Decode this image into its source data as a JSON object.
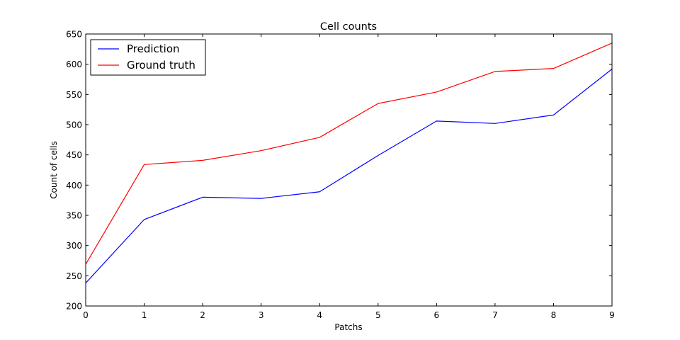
{
  "chart_data": {
    "type": "line",
    "title": "Cell counts",
    "xlabel": "Patchs",
    "ylabel": "Count of cells",
    "x": [
      0,
      1,
      2,
      3,
      4,
      5,
      6,
      7,
      8,
      9
    ],
    "xlim": [
      0,
      9
    ],
    "ylim": [
      200,
      650
    ],
    "xticks": [
      0,
      1,
      2,
      3,
      4,
      5,
      6,
      7,
      8,
      9
    ],
    "yticks": [
      200,
      250,
      300,
      350,
      400,
      450,
      500,
      550,
      600,
      650
    ],
    "grid": false,
    "legend_position": "top-left",
    "series": [
      {
        "name": "Prediction",
        "color": "#0000ff",
        "values": [
          238,
          343,
          380,
          378,
          389,
          449,
          506,
          502,
          516,
          592
        ]
      },
      {
        "name": "Ground truth",
        "color": "#ff0000",
        "values": [
          269,
          434,
          441,
          457,
          479,
          535,
          554,
          588,
          593,
          635
        ]
      }
    ]
  }
}
